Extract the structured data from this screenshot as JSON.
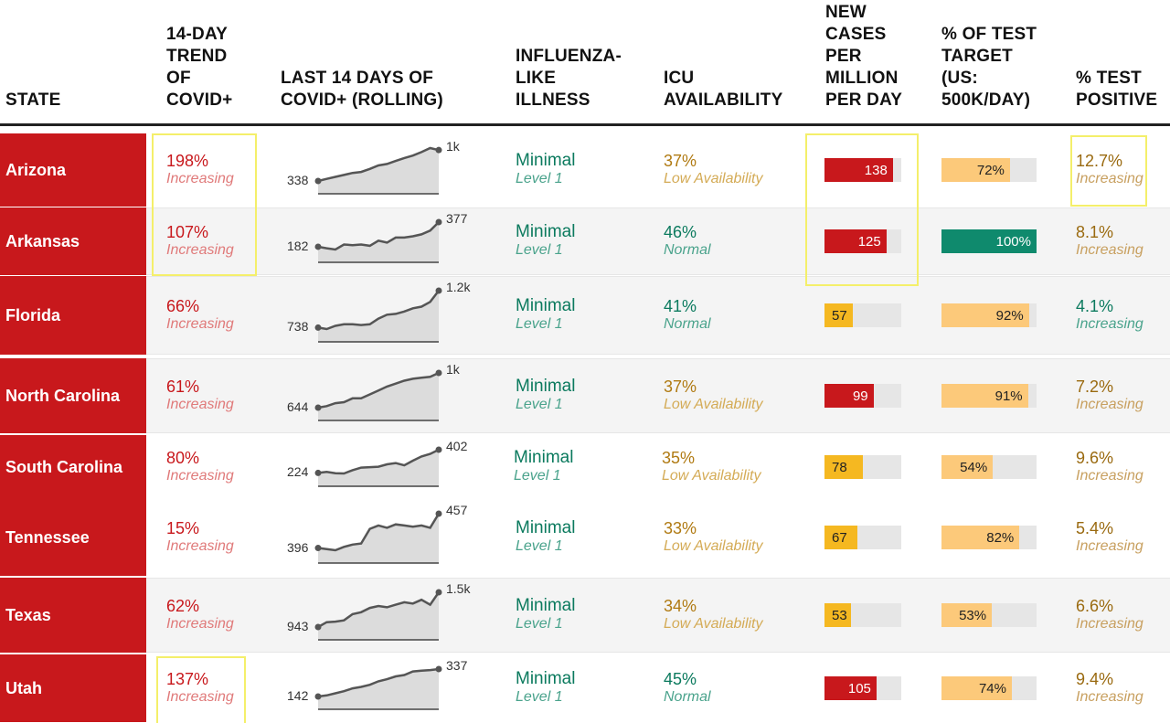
{
  "header": {
    "state": "STATE",
    "trend": "14-DAY\nTREND\nOF\nCOVID+",
    "last14": "LAST 14 DAYS OF\nCOVID+ (ROLLING)",
    "ili": "INFLUENZA-\nLIKE\nILLNESS",
    "icu": "ICU\nAVAILABILITY",
    "cases": "NEW\nCASES\nPER\nMILLION\nPER DAY",
    "test_target": "% OF TEST\nTARGET\n(US:\n500K/DAY)",
    "test_positive": "% TEST\nPOSITIVE"
  },
  "chart_data": {
    "type": "table",
    "columns": [
      "STATE",
      "14-DAY TREND OF COVID+",
      "LAST 14 DAYS OF COVID+ (ROLLING)",
      "INFLUENZA-LIKE ILLNESS",
      "ICU AVAILABILITY",
      "NEW CASES PER MILLION PER DAY",
      "% OF TEST TARGET (US: 500K/DAY)",
      "% TEST POSITIVE"
    ],
    "rows": [
      {
        "state": "Arizona",
        "trend": "198%",
        "trend_label": "Increasing",
        "spark_start": "338",
        "spark_end": "1k",
        "spark": [
          338,
          380,
          420,
          460,
          500,
          520,
          580,
          650,
          680,
          740,
          800,
          850,
          920,
          1000,
          960
        ],
        "ili": "Minimal",
        "ili_level": "Level 1",
        "icu": "37%",
        "icu_label": "Low Availability",
        "icu_status": "low",
        "cases": "138",
        "cases_value": 138,
        "cases_color": "red",
        "test_target": "72%",
        "test_target_value": 72,
        "test_color": "orange",
        "positive": "12.7%",
        "positive_label": "Increasing",
        "positive_status": "warn",
        "shaded": false
      },
      {
        "state": "Arkansas",
        "trend": "107%",
        "trend_label": "Increasing",
        "spark_start": "182",
        "spark_end": "377",
        "spark": [
          182,
          170,
          160,
          200,
          195,
          200,
          190,
          230,
          215,
          255,
          255,
          265,
          280,
          310,
          377
        ],
        "ili": "Minimal",
        "ili_level": "Level 1",
        "icu": "46%",
        "icu_label": "Normal",
        "icu_status": "normal",
        "cases": "125",
        "cases_value": 125,
        "cases_color": "red",
        "test_target": "100%",
        "test_target_value": 100,
        "test_color": "green",
        "positive": "8.1%",
        "positive_label": "Increasing",
        "positive_status": "warn",
        "shaded": true
      },
      {
        "state": "Florida",
        "trend": "66%",
        "trend_label": "Increasing",
        "spark_start": "738",
        "spark_end": "1.2k",
        "spark": [
          738,
          720,
          760,
          780,
          780,
          770,
          780,
          850,
          900,
          910,
          940,
          980,
          1000,
          1060,
          1200
        ],
        "ili": "Minimal",
        "ili_level": "Level 1",
        "icu": "41%",
        "icu_label": "Normal",
        "icu_status": "normal",
        "cases": "57",
        "cases_value": 57,
        "cases_color": "yellow",
        "test_target": "92%",
        "test_target_value": 92,
        "test_color": "orange",
        "positive": "4.1%",
        "positive_label": "Increasing",
        "positive_status": "good",
        "shaded": true
      },
      {
        "state": "North Carolina",
        "trend": "61%",
        "trend_label": "Increasing",
        "spark_start": "644",
        "spark_end": "1k",
        "spark": [
          644,
          660,
          690,
          700,
          740,
          740,
          780,
          820,
          860,
          890,
          920,
          940,
          950,
          960,
          1000
        ],
        "ili": "Minimal",
        "ili_level": "Level 1",
        "icu": "37%",
        "icu_label": "Low Availability",
        "icu_status": "low",
        "cases": "99",
        "cases_value": 99,
        "cases_color": "red",
        "test_target": "91%",
        "test_target_value": 91,
        "test_color": "orange",
        "positive": "7.2%",
        "positive_label": "Increasing",
        "positive_status": "warn",
        "shaded": true
      },
      {
        "state": "South Carolina",
        "trend": "80%",
        "trend_label": "Increasing",
        "spark_start": "224",
        "spark_end": "402",
        "spark": [
          224,
          232,
          222,
          220,
          245,
          265,
          268,
          272,
          290,
          300,
          282,
          318,
          350,
          370,
          402
        ],
        "ili": "Minimal",
        "ili_level": "Level 1",
        "icu": "35%",
        "icu_label": "Low Availability",
        "icu_status": "low",
        "cases": "78",
        "cases_value": 78,
        "cases_color": "yellow",
        "test_target": "54%",
        "test_target_value": 54,
        "test_color": "orange",
        "positive": "9.6%",
        "positive_label": "Increasing",
        "positive_status": "warn",
        "shaded": false
      },
      {
        "state": "Tennessee",
        "trend": "15%",
        "trend_label": "Increasing",
        "spark_start": "396",
        "spark_end": "457",
        "spark": [
          396,
          394,
          392,
          398,
          402,
          404,
          430,
          436,
          432,
          438,
          436,
          434,
          436,
          432,
          457
        ],
        "ili": "Minimal",
        "ili_level": "Level 1",
        "icu": "33%",
        "icu_label": "Low Availability",
        "icu_status": "low",
        "cases": "67",
        "cases_value": 67,
        "cases_color": "yellow",
        "test_target": "82%",
        "test_target_value": 82,
        "test_color": "orange",
        "positive": "5.4%",
        "positive_label": "Increasing",
        "positive_status": "warn",
        "shaded": false
      },
      {
        "state": "Texas",
        "trend": "62%",
        "trend_label": "Increasing",
        "spark_start": "943",
        "spark_end": "1.5k",
        "spark": [
          943,
          1020,
          1030,
          1050,
          1150,
          1180,
          1250,
          1280,
          1260,
          1300,
          1340,
          1320,
          1380,
          1300,
          1500
        ],
        "ili": "Minimal",
        "ili_level": "Level 1",
        "icu": "34%",
        "icu_label": "Low Availability",
        "icu_status": "low",
        "cases": "53",
        "cases_value": 53,
        "cases_color": "yellow",
        "test_target": "53%",
        "test_target_value": 53,
        "test_color": "orange",
        "positive": "6.6%",
        "positive_label": "Increasing",
        "positive_status": "warn",
        "shaded": true
      },
      {
        "state": "Utah",
        "trend": "137%",
        "trend_label": "Increasing",
        "spark_start": "142",
        "spark_end": "337",
        "spark": [
          142,
          150,
          165,
          180,
          200,
          210,
          225,
          250,
          265,
          285,
          295,
          320,
          325,
          330,
          337
        ],
        "ili": "Minimal",
        "ili_level": "Level 1",
        "icu": "45%",
        "icu_label": "Normal",
        "icu_status": "normal",
        "cases": "105",
        "cases_value": 105,
        "cases_color": "red",
        "test_target": "74%",
        "test_target_value": 74,
        "test_color": "orange",
        "positive": "9.4%",
        "positive_label": "Increasing",
        "positive_status": "warn",
        "shaded": false
      }
    ],
    "cases_scale_max": 155,
    "test_scale_max": 100
  },
  "colors": {
    "state_red": "#c8181c",
    "cases_red": "#c8181c",
    "cases_yellow": "#f5b821",
    "test_orange": "#fcc97a",
    "test_green": "#0f8a6d",
    "highlight": "#f4ef6a"
  }
}
